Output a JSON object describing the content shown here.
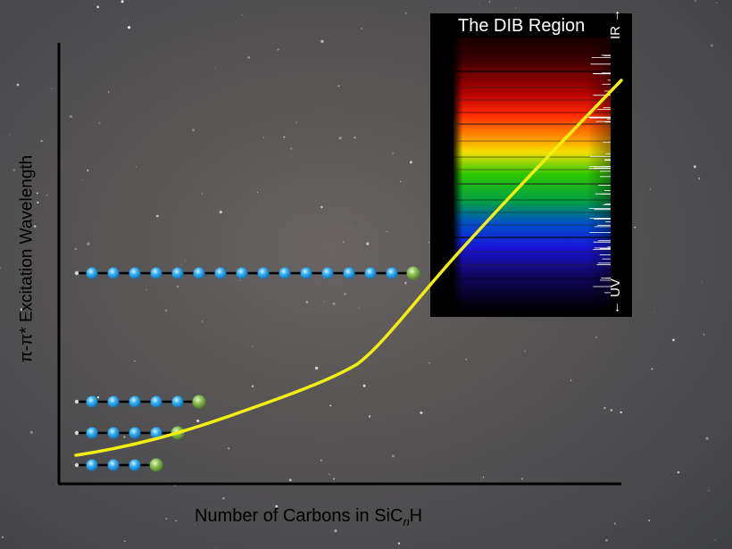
{
  "axes": {
    "ylabel": "π-π* Excitation Wavelength",
    "xlabel_prefix": "Number of Carbons in SiC",
    "xlabel_italic": "n",
    "xlabel_suffix": "H"
  },
  "inset": {
    "title": "The DIB Region",
    "top_label": "IR",
    "bottom_label": "UV"
  },
  "molecules": [
    {
      "carbons": 3
    },
    {
      "carbons": 4
    },
    {
      "carbons": 5
    },
    {
      "carbons": 15
    }
  ],
  "colors": {
    "curve": "#f2ef10",
    "carbon_atom": "#2fa6ec",
    "terminal_atom": "#7fb24a",
    "hydrogen": "#d8d8d8"
  }
}
